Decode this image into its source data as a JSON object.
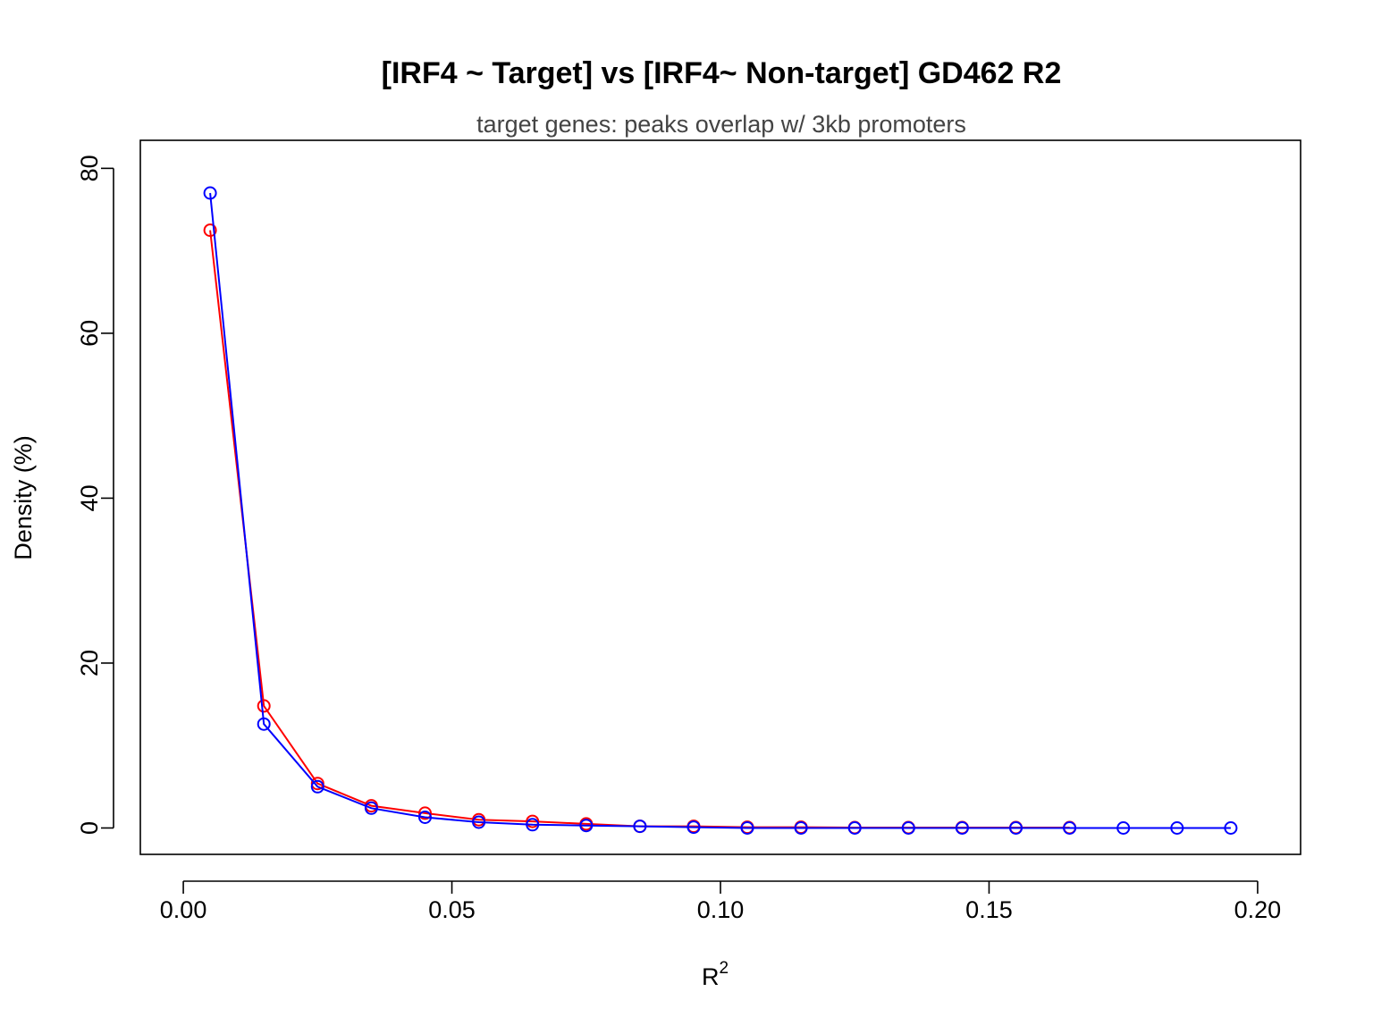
{
  "chart_data": {
    "type": "line",
    "title": "[IRF4 ~ Target] vs [IRF4~ Non-target] GD462 R2",
    "subtitle": "target genes: peaks overlap w/ 3kb promoters",
    "xlabel_base": "R",
    "xlabel_superscript": "2",
    "ylabel": "Density (%)",
    "xlim": [
      -0.008,
      0.208
    ],
    "ylim": [
      -3.2,
      83.4
    ],
    "x_ticks": [
      0.0,
      0.05,
      0.1,
      0.15,
      0.2
    ],
    "x_tick_labels": [
      "0.00",
      "0.05",
      "0.10",
      "0.15",
      "0.20"
    ],
    "y_ticks": [
      0,
      20,
      40,
      60,
      80
    ],
    "y_tick_labels": [
      "0",
      "20",
      "40",
      "60",
      "80"
    ],
    "grid": false,
    "legend": "none",
    "marker": "open-circle",
    "x": [
      0.005,
      0.015,
      0.025,
      0.035,
      0.045,
      0.055,
      0.065,
      0.075,
      0.085,
      0.095,
      0.105,
      0.115,
      0.125,
      0.135,
      0.145,
      0.155,
      0.165,
      0.175,
      0.185,
      0.195
    ],
    "series": [
      {
        "color": "#ff0000",
        "values": [
          72.5,
          14.8,
          5.4,
          2.7,
          1.8,
          1.0,
          0.8,
          0.5,
          0.2,
          0.2,
          0.1,
          0.1,
          0.05,
          0.05,
          0.05,
          0.05,
          0.05,
          null,
          null,
          null
        ]
      },
      {
        "color": "#0000ff",
        "values": [
          77.0,
          12.6,
          5.0,
          2.4,
          1.3,
          0.7,
          0.4,
          0.3,
          0.2,
          0.1,
          0.0,
          0.0,
          0.0,
          0.0,
          0.0,
          0.0,
          0.0,
          0.0,
          0.0,
          0.0
        ]
      }
    ]
  }
}
